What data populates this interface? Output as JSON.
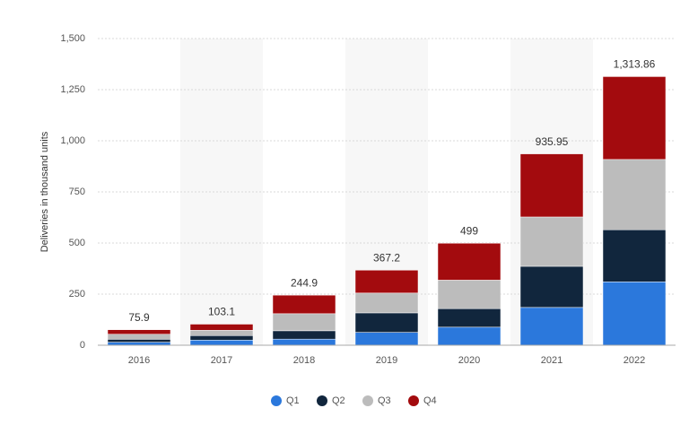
{
  "chart_data": {
    "type": "stacked-bar",
    "y_label": "Deliveries in thousand units",
    "categories": [
      "2016",
      "2017",
      "2018",
      "2019",
      "2020",
      "2021",
      "2022"
    ],
    "series": [
      {
        "name": "Q1",
        "color": "#2b78dc",
        "values": [
          14.82,
          25.0,
          29.98,
          63.0,
          88.4,
          184.8,
          310.05
        ]
      },
      {
        "name": "Q2",
        "color": "#11263d",
        "values": [
          14.37,
          22.0,
          40.74,
          95.2,
          90.65,
          201.25,
          254.7
        ]
      },
      {
        "name": "Q3",
        "color": "#bcbcbc",
        "values": [
          24.5,
          26.1,
          83.5,
          97.0,
          139.3,
          241.3,
          343.83
        ]
      },
      {
        "name": "Q4",
        "color": "#a30b0e",
        "values": [
          22.2,
          30.0,
          90.7,
          112.0,
          180.57,
          308.6,
          405.28
        ]
      }
    ],
    "totals": [
      75.9,
      103.1,
      244.9,
      367.2,
      499,
      935.95,
      1313.86
    ],
    "total_labels": [
      "75.9",
      "103.1",
      "244.9",
      "367.2",
      "499",
      "935.95",
      "1,313.86"
    ],
    "ylim": [
      0,
      1500
    ],
    "yticks": [
      0,
      250,
      500,
      750,
      {
        "value": 1000,
        "label": "1,000"
      },
      {
        "value": 1250,
        "label": "1,250"
      },
      {
        "value": 1500,
        "label": "1,500"
      }
    ],
    "grid": true
  }
}
